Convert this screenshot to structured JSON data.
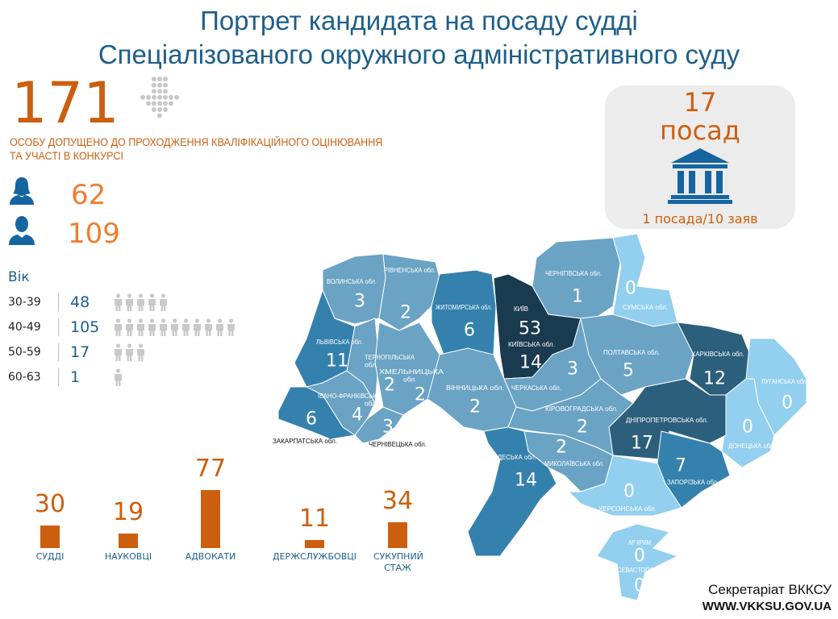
{
  "title": {
    "line1": "Портрет кандидата на посаду судді",
    "line2": "Спеціалізованого окружного адміністративного суду"
  },
  "admitted": {
    "count": "171",
    "text_line1": "ОСОБУ ДОПУЩЕНО ДО ПРОХОДЖЕННЯ КВАЛІФІКАЦІЙНОГО ОЦІНЮВАННЯ",
    "text_line2": "ТА УЧАСТІ В КОНКУРСІ"
  },
  "gender": {
    "female": "62",
    "male": "109"
  },
  "age": {
    "header": "Вік",
    "rows": [
      {
        "range": "30-39",
        "value": "48",
        "icons": 5
      },
      {
        "range": "40-49",
        "value": "105",
        "icons": 11
      },
      {
        "range": "50-59",
        "value": "17",
        "icons": 3
      },
      {
        "range": "60-63",
        "value": "1",
        "icons": 1
      }
    ]
  },
  "positions": {
    "count": "17",
    "word": "посад",
    "ratio": "1 посада/10 заяв"
  },
  "chart_data": {
    "type": "bar",
    "categories": [
      "СУДДІ",
      "НАУКОВЦІ",
      "АДВОКАТИ",
      "ДЕРЖСЛУЖБОВЦІ",
      "СУКУПНИЙ СТАЖ"
    ],
    "values": [
      30,
      19,
      77,
      11,
      34
    ]
  },
  "map": {
    "regions": [
      {
        "name": "ВОЛИНСЬКА обл.",
        "value": "3"
      },
      {
        "name": "РІВНЕНСЬКА обл.",
        "value": "2"
      },
      {
        "name": "ЖИТОМИРСЬКА обл.",
        "value": "6"
      },
      {
        "name": "КИЇВ",
        "value": "53"
      },
      {
        "name": "КИЇВСЬКА обл.",
        "value": "14"
      },
      {
        "name": "ЧЕРНІГІВСЬКА обл.",
        "value": "1"
      },
      {
        "name": "СУМСЬКА обл.",
        "value": "0"
      },
      {
        "name": "ЛЬВІВСЬКА обл.",
        "value": "11"
      },
      {
        "name": "ТЕРНОПІЛЬСЬКА обл.",
        "value": "2"
      },
      {
        "name": "ХМЕЛЬНИЦЬКА обл.",
        "value": "2"
      },
      {
        "name": "ІВАНО-ФРАНКІВСЬКА обл.",
        "value": "4"
      },
      {
        "name": "ЧЕРНІВЕЦЬКА обл.",
        "value": "3"
      },
      {
        "name": "ЗАКАРПАТСЬКА обл.",
        "value": "6"
      },
      {
        "name": "ВІННИЦЬКА обл.",
        "value": "2"
      },
      {
        "name": "ЧЕРКАСЬКА обл.",
        "value": "3"
      },
      {
        "name": "ПОЛТАВСЬКА обл.",
        "value": "5"
      },
      {
        "name": "ХАРКІВСЬКА обл.",
        "value": "12"
      },
      {
        "name": "ЛУГАНСЬКА обл.",
        "value": "0"
      },
      {
        "name": "ДОНЕЦЬКА обл.",
        "value": "0"
      },
      {
        "name": "ДНІПРОПЕТРОВСЬКА обл.",
        "value": "17"
      },
      {
        "name": "ЗАПОРІЗЬКА обл.",
        "value": "7"
      },
      {
        "name": "КІРОВОГРАДСЬКА обл.",
        "value": "2"
      },
      {
        "name": "МИКОЛАЇВСЬКА обл.",
        "value": "2"
      },
      {
        "name": "ОДЕСЬКА обл.",
        "value": "14"
      },
      {
        "name": "ХЕРСОНСЬКА обл.",
        "value": "0"
      },
      {
        "name": "АР КРИМ",
        "value": "0"
      },
      {
        "name": "СЕВАСТОПОЛЬ",
        "value": "0"
      }
    ],
    "colors": {
      "c0": "#93cfee",
      "c1": "#6aa3c4",
      "c2": "#3581ad",
      "c3": "#2c5f7c",
      "c4": "#1a3a50"
    }
  },
  "footer": {
    "org": "Секретаріат ВККСУ",
    "url": "WWW.VKKSU.GOV.UA"
  }
}
